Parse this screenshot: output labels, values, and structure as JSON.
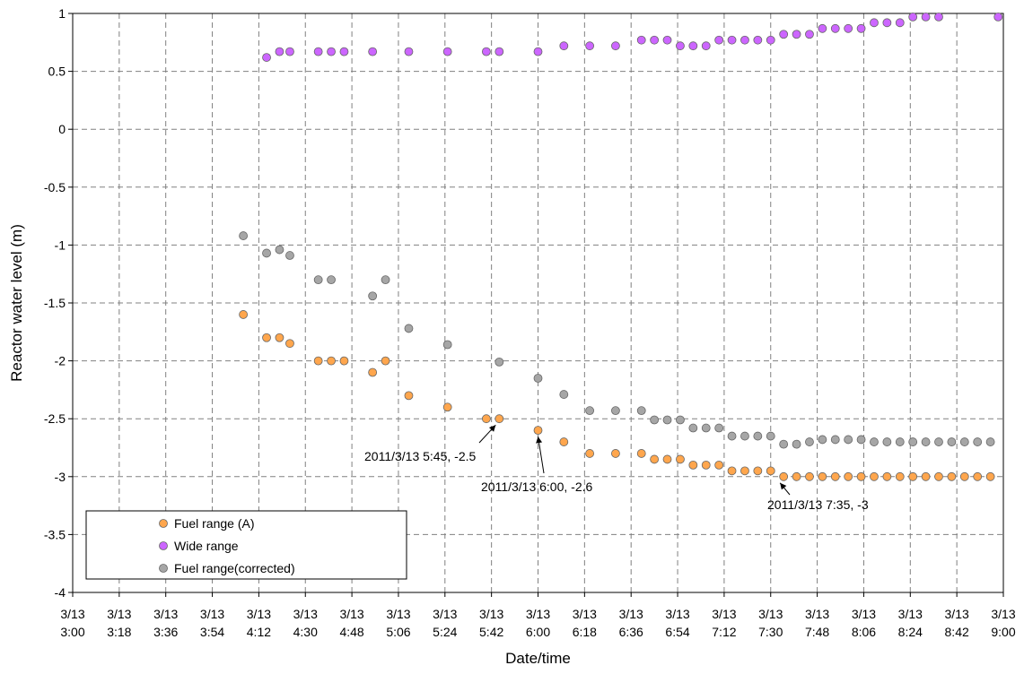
{
  "chart_data": {
    "type": "scatter",
    "xlabel": "Date/time",
    "ylabel": "Reactor water level (m)",
    "ylim": [
      -4,
      1
    ],
    "xlim_minutes": [
      0,
      360
    ],
    "x_origin": "3/13 3:00",
    "yticks": [
      1,
      0.5,
      0,
      -0.5,
      -1,
      -1.5,
      -2,
      -2.5,
      -3,
      -3.5,
      -4
    ],
    "ytick_labels": [
      "1",
      "0.5",
      "0",
      "-0.5",
      "-1",
      "-1.5",
      "-2",
      "-2.5",
      "-3",
      "-3.5",
      "-4"
    ],
    "xticks": [
      {
        "date": "3/13",
        "time": "3:00"
      },
      {
        "date": "3/13",
        "time": "3:18"
      },
      {
        "date": "3/13",
        "time": "3:36"
      },
      {
        "date": "3/13",
        "time": "3:54"
      },
      {
        "date": "3/13",
        "time": "4:12"
      },
      {
        "date": "3/13",
        "time": "4:30"
      },
      {
        "date": "3/13",
        "time": "4:48"
      },
      {
        "date": "3/13",
        "time": "5:06"
      },
      {
        "date": "3/13",
        "time": "5:24"
      },
      {
        "date": "3/13",
        "time": "5:42"
      },
      {
        "date": "3/13",
        "time": "6:00"
      },
      {
        "date": "3/13",
        "time": "6:18"
      },
      {
        "date": "3/13",
        "time": "6:36"
      },
      {
        "date": "3/13",
        "time": "6:54"
      },
      {
        "date": "3/13",
        "time": "7:12"
      },
      {
        "date": "3/13",
        "time": "7:30"
      },
      {
        "date": "3/13",
        "time": "7:48"
      },
      {
        "date": "3/13",
        "time": "8:06"
      },
      {
        "date": "3/13",
        "time": "8:24"
      },
      {
        "date": "3/13",
        "time": "8:42"
      },
      {
        "date": "3/13",
        "time": "9:00"
      }
    ],
    "grid": true,
    "legend_position": "bottom-left",
    "series": [
      {
        "name": "Fuel range (A)",
        "color": "#ffa64d",
        "points": [
          [
            "4:06",
            -1.6
          ],
          [
            "4:15",
            -1.8
          ],
          [
            "4:20",
            -1.8
          ],
          [
            "4:24",
            -1.85
          ],
          [
            "4:35",
            -2.0
          ],
          [
            "4:40",
            -2.0
          ],
          [
            "4:45",
            -2.0
          ],
          [
            "4:56",
            -2.1
          ],
          [
            "5:01",
            -2.0
          ],
          [
            "5:10",
            -2.3
          ],
          [
            "5:25",
            -2.4
          ],
          [
            "5:40",
            -2.5
          ],
          [
            "5:45",
            -2.5
          ],
          [
            "6:00",
            -2.6
          ],
          [
            "6:10",
            -2.7
          ],
          [
            "6:20",
            -2.8
          ],
          [
            "6:30",
            -2.8
          ],
          [
            "6:40",
            -2.8
          ],
          [
            "6:45",
            -2.85
          ],
          [
            "6:50",
            -2.85
          ],
          [
            "6:55",
            -2.85
          ],
          [
            "7:00",
            -2.9
          ],
          [
            "7:05",
            -2.9
          ],
          [
            "7:10",
            -2.9
          ],
          [
            "7:15",
            -2.95
          ],
          [
            "7:20",
            -2.95
          ],
          [
            "7:25",
            -2.95
          ],
          [
            "7:30",
            -2.95
          ],
          [
            "7:35",
            -3.0
          ],
          [
            "7:40",
            -3.0
          ],
          [
            "7:45",
            -3.0
          ],
          [
            "7:50",
            -3.0
          ],
          [
            "7:55",
            -3.0
          ],
          [
            "8:00",
            -3.0
          ],
          [
            "8:05",
            -3.0
          ],
          [
            "8:10",
            -3.0
          ],
          [
            "8:15",
            -3.0
          ],
          [
            "8:20",
            -3.0
          ],
          [
            "8:25",
            -3.0
          ],
          [
            "8:30",
            -3.0
          ],
          [
            "8:35",
            -3.0
          ],
          [
            "8:40",
            -3.0
          ],
          [
            "8:45",
            -3.0
          ],
          [
            "8:50",
            -3.0
          ],
          [
            "8:55",
            -3.0
          ]
        ]
      },
      {
        "name": "Wide range",
        "color": "#cc66ff",
        "points": [
          [
            "4:15",
            0.62
          ],
          [
            "4:20",
            0.67
          ],
          [
            "4:24",
            0.67
          ],
          [
            "4:35",
            0.67
          ],
          [
            "4:40",
            0.67
          ],
          [
            "4:45",
            0.67
          ],
          [
            "4:56",
            0.67
          ],
          [
            "5:10",
            0.67
          ],
          [
            "5:25",
            0.67
          ],
          [
            "5:40",
            0.67
          ],
          [
            "5:45",
            0.67
          ],
          [
            "6:00",
            0.67
          ],
          [
            "6:10",
            0.72
          ],
          [
            "6:20",
            0.72
          ],
          [
            "6:30",
            0.72
          ],
          [
            "6:40",
            0.77
          ],
          [
            "6:45",
            0.77
          ],
          [
            "6:50",
            0.77
          ],
          [
            "6:55",
            0.72
          ],
          [
            "7:00",
            0.72
          ],
          [
            "7:05",
            0.72
          ],
          [
            "7:10",
            0.77
          ],
          [
            "7:15",
            0.77
          ],
          [
            "7:20",
            0.77
          ],
          [
            "7:25",
            0.77
          ],
          [
            "7:30",
            0.77
          ],
          [
            "7:35",
            0.82
          ],
          [
            "7:40",
            0.82
          ],
          [
            "7:45",
            0.82
          ],
          [
            "7:50",
            0.87
          ],
          [
            "7:55",
            0.87
          ],
          [
            "8:00",
            0.87
          ],
          [
            "8:05",
            0.87
          ],
          [
            "8:10",
            0.92
          ],
          [
            "8:15",
            0.92
          ],
          [
            "8:20",
            0.92
          ],
          [
            "8:25",
            0.97
          ],
          [
            "8:30",
            0.97
          ],
          [
            "8:35",
            0.97
          ],
          [
            "8:58",
            0.97
          ]
        ]
      },
      {
        "name": "Fuel range(corrected)",
        "color": "#a6a6a6",
        "points": [
          [
            "4:06",
            -0.92
          ],
          [
            "4:15",
            -1.07
          ],
          [
            "4:20",
            -1.04
          ],
          [
            "4:24",
            -1.09
          ],
          [
            "4:35",
            -1.3
          ],
          [
            "4:40",
            -1.3
          ],
          [
            "4:56",
            -1.44
          ],
          [
            "5:01",
            -1.3
          ],
          [
            "5:10",
            -1.72
          ],
          [
            "5:25",
            -1.86
          ],
          [
            "5:45",
            -2.01
          ],
          [
            "6:00",
            -2.15
          ],
          [
            "6:10",
            -2.29
          ],
          [
            "6:20",
            -2.43
          ],
          [
            "6:30",
            -2.43
          ],
          [
            "6:40",
            -2.43
          ],
          [
            "6:45",
            -2.51
          ],
          [
            "6:50",
            -2.51
          ],
          [
            "6:55",
            -2.51
          ],
          [
            "7:00",
            -2.58
          ],
          [
            "7:05",
            -2.58
          ],
          [
            "7:10",
            -2.58
          ],
          [
            "7:15",
            -2.65
          ],
          [
            "7:20",
            -2.65
          ],
          [
            "7:25",
            -2.65
          ],
          [
            "7:30",
            -2.65
          ],
          [
            "7:35",
            -2.72
          ],
          [
            "7:40",
            -2.72
          ],
          [
            "7:45",
            -2.7
          ],
          [
            "7:50",
            -2.68
          ],
          [
            "7:55",
            -2.68
          ],
          [
            "8:00",
            -2.68
          ],
          [
            "8:05",
            -2.68
          ],
          [
            "8:10",
            -2.7
          ],
          [
            "8:15",
            -2.7
          ],
          [
            "8:20",
            -2.7
          ],
          [
            "8:25",
            -2.7
          ],
          [
            "8:30",
            -2.7
          ],
          [
            "8:35",
            -2.7
          ],
          [
            "8:40",
            -2.7
          ],
          [
            "8:45",
            -2.7
          ],
          [
            "8:50",
            -2.7
          ],
          [
            "8:55",
            -2.7
          ]
        ]
      }
    ],
    "annotations": [
      {
        "text": "2011/3/13 5:45, -2.5",
        "x": "5:45",
        "y": -2.5
      },
      {
        "text": "2011/3/13 6:00, -2.6",
        "x": "6:00",
        "y": -2.6
      },
      {
        "text": "2011/3/13 7:35, -3",
        "x": "7:35",
        "y": -3.0
      }
    ]
  }
}
